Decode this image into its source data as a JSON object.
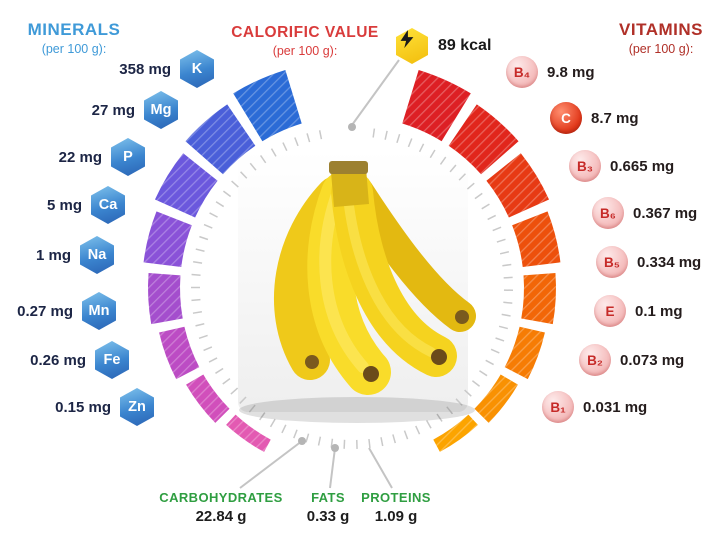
{
  "header": {
    "minerals_title": "MINERALS",
    "minerals_sub": "(per 100 g):",
    "calorific_title": "CALORIFIC VALUE",
    "calorific_sub": "(per 100 g):",
    "calorific_value": "89 kcal",
    "vitamins_title": "VITAMINS",
    "vitamins_sub": "(per 100 g):"
  },
  "minerals": {
    "items": [
      {
        "symbol": "K",
        "value": "358 mg"
      },
      {
        "symbol": "Mg",
        "value": "27 mg"
      },
      {
        "symbol": "P",
        "value": "22 mg"
      },
      {
        "symbol": "Ca",
        "value": "5 mg"
      },
      {
        "symbol": "Na",
        "value": "1 mg"
      },
      {
        "symbol": "Mn",
        "value": "0.27 mg"
      },
      {
        "symbol": "Fe",
        "value": "0.26 mg"
      },
      {
        "symbol": "Zn",
        "value": "0.15 mg"
      }
    ]
  },
  "vitamins": {
    "items": [
      {
        "symbol": "B₄",
        "value": "9.8 mg"
      },
      {
        "symbol": "C",
        "value": "8.7 mg"
      },
      {
        "symbol": "B₃",
        "value": "0.665 mg"
      },
      {
        "symbol": "B₆",
        "value": "0.367 mg"
      },
      {
        "symbol": "B₅",
        "value": "0.334 mg"
      },
      {
        "symbol": "E",
        "value": "0.1 mg"
      },
      {
        "symbol": "B₂",
        "value": "0.073 mg"
      },
      {
        "symbol": "B₁",
        "value": "0.031 mg"
      }
    ]
  },
  "macros": {
    "items": [
      {
        "label": "CARBOHYDRATES",
        "value": "22.84 g"
      },
      {
        "label": "FATS",
        "value": "0.33 g"
      },
      {
        "label": "PROTEINS",
        "value": "1.09 g"
      }
    ]
  },
  "colors": {
    "minerals_accent": "#3f9ad8",
    "vitamins_accent": "#b03028",
    "calorific_accent": "#d93b3b",
    "macros_accent": "#2f9e41",
    "bolt_yellow": "#f6c50f"
  },
  "chart_data": [
    {
      "type": "bar",
      "title": "Minerals (per 100 g)",
      "layout": "radial-gauge-left, thickness decreasing with rank, striped segments",
      "categories": [
        "K",
        "Mg",
        "P",
        "Ca",
        "Na",
        "Mn",
        "Fe",
        "Zn"
      ],
      "values": [
        358,
        27,
        22,
        5,
        1,
        0.27,
        0.26,
        0.15
      ],
      "unit": "mg",
      "colors": [
        "#2b6bd6",
        "#4a5fd9",
        "#6b58dd",
        "#8a52d8",
        "#a44ecd",
        "#bc4cc4",
        "#d14fbb",
        "#e35ab2"
      ]
    },
    {
      "type": "bar",
      "title": "Vitamins (per 100 g)",
      "layout": "radial-gauge-right, thickness decreasing with rank, striped segments",
      "categories": [
        "B4",
        "C",
        "B3",
        "B6",
        "B5",
        "E",
        "B2",
        "B1"
      ],
      "values": [
        9.8,
        8.7,
        0.665,
        0.367,
        0.334,
        0.1,
        0.073,
        0.031
      ],
      "unit": "mg",
      "colors": [
        "#dd1f24",
        "#e1261c",
        "#e73a14",
        "#ed500c",
        "#f26607",
        "#f67c04",
        "#f99102",
        "#fca400"
      ]
    },
    {
      "type": "bar",
      "title": "Macronutrients (per 100 g)",
      "categories": [
        "Carbohydrates",
        "Fats",
        "Proteins"
      ],
      "values": [
        22.84,
        0.33,
        1.09
      ],
      "unit": "g"
    },
    {
      "type": "bar",
      "title": "Calorific value (per 100 g)",
      "categories": [
        "Energy"
      ],
      "values": [
        89
      ],
      "unit": "kcal"
    }
  ]
}
